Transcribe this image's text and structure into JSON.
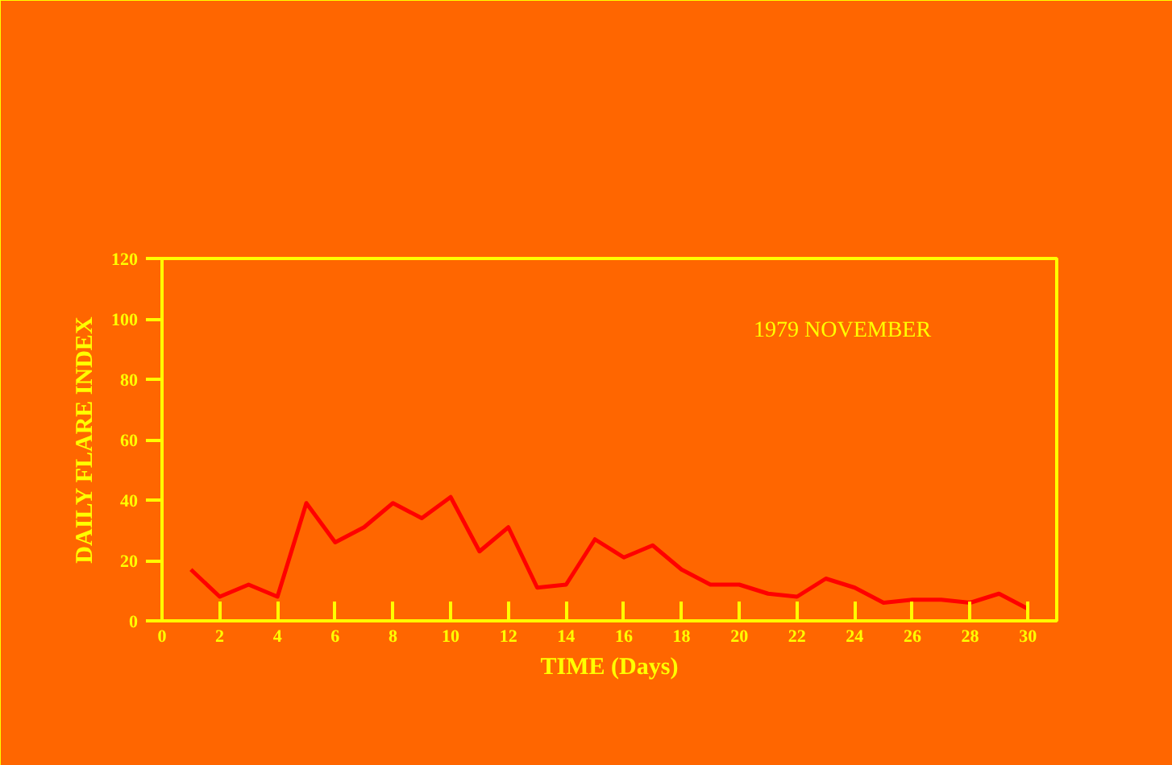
{
  "chart_data": {
    "type": "line",
    "xlabel": "TIME (Days)",
    "ylabel": "DAILY FLARE INDEX",
    "annotations": [
      "1979  NOVEMBER"
    ],
    "x": [
      1,
      2,
      3,
      4,
      5,
      6,
      7,
      8,
      9,
      10,
      11,
      12,
      13,
      14,
      15,
      16,
      17,
      18,
      19,
      20,
      21,
      22,
      23,
      24,
      25,
      26,
      27,
      28,
      29,
      30
    ],
    "series": [
      {
        "color": "#ff0000",
        "values": [
          17,
          8,
          12,
          8,
          39,
          26,
          31,
          39,
          34,
          41,
          23,
          31,
          11,
          12,
          27,
          21,
          25,
          17,
          12,
          12,
          9,
          8,
          14,
          11,
          6,
          7,
          7,
          6,
          9,
          4
        ]
      }
    ],
    "xlim": [
      0,
      31
    ],
    "xticks": [
      0,
      2,
      4,
      6,
      8,
      10,
      12,
      14,
      16,
      18,
      20,
      22,
      24,
      26,
      28,
      30
    ],
    "ylim": [
      0,
      120
    ],
    "yticks": [
      0,
      20,
      40,
      60,
      80,
      100,
      120
    ],
    "grid": false,
    "marker": "none",
    "line_style": "solid"
  }
}
